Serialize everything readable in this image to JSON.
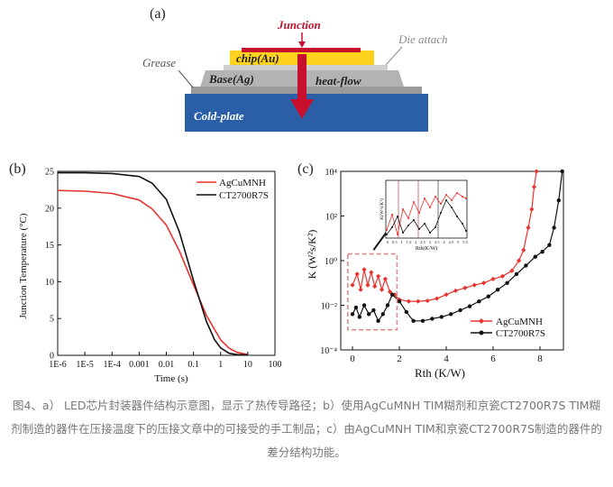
{
  "diagram": {
    "label": "(a)",
    "junction": "Junction",
    "die_attach": "Die attach",
    "grease": "Grease",
    "chip": "chip(Au)",
    "base": "Base(Ag)",
    "heat_flow": "heat-flow",
    "cold_plate": "Cold-plate",
    "colors": {
      "chip": "#ffd21e",
      "layers": "#b3b3b3",
      "cold_plate": "#2a5fa8",
      "junction": "#c8102e"
    }
  },
  "chart_data": [
    {
      "panel": "(b)",
      "type": "line",
      "xscale": "log",
      "xlabel": "Time (s)",
      "ylabel": "Junction Temperature (°C)",
      "xlim": [
        1e-06,
        100
      ],
      "ylim": [
        0,
        25
      ],
      "xticks": [
        "1E-6",
        "1E-5",
        "1E-4",
        "0.001",
        "0.01",
        "0.1",
        "1",
        "10",
        "100"
      ],
      "yticks": [
        "0",
        "5",
        "10",
        "15",
        "20",
        "25"
      ],
      "legend_position": "top-right",
      "series": [
        {
          "name": "AgCuMNH",
          "color": "#e8322e",
          "x": [
            1e-06,
            1e-05,
            0.0001,
            0.001,
            0.003,
            0.01,
            0.03,
            0.1,
            0.3,
            1,
            2,
            4,
            10
          ],
          "y": [
            22.4,
            22.3,
            22.0,
            21.1,
            19.9,
            17.7,
            14.2,
            9.6,
            5.4,
            2.1,
            1.0,
            0.4,
            0.1
          ]
        },
        {
          "name": "CT2700R7S",
          "color": "#111111",
          "x": [
            1e-06,
            1e-05,
            0.0001,
            0.001,
            0.003,
            0.01,
            0.03,
            0.1,
            0.3,
            0.6,
            1,
            2,
            4,
            10
          ],
          "y": [
            24.8,
            24.8,
            24.7,
            24.3,
            23.4,
            21.2,
            16.8,
            10.2,
            4.6,
            2.1,
            1.0,
            0.3,
            0.1,
            0.05
          ]
        }
      ]
    },
    {
      "panel": "(c)",
      "type": "line",
      "yscale": "log",
      "xlabel": "Rth (K/W)",
      "ylabel": "K (W²s/K²)",
      "xlim": [
        -0.5,
        9
      ],
      "ylim": [
        0.0001,
        10000
      ],
      "xticks": [
        "0",
        "2",
        "4",
        "6",
        "8"
      ],
      "yticks": [
        "10⁻⁴",
        "10⁻²",
        "10⁰",
        "10²",
        "10⁴"
      ],
      "legend_position": "bottom-right",
      "series": [
        {
          "name": "AgCuMNH",
          "color": "#e8322e",
          "marker": "diamond",
          "x": [
            0,
            0.2,
            0.35,
            0.5,
            0.65,
            0.8,
            0.95,
            1.1,
            1.25,
            1.4,
            1.6,
            1.8,
            2.0,
            2.4,
            2.8,
            3.2,
            3.6,
            4.0,
            4.4,
            4.8,
            5.2,
            5.6,
            6.0,
            6.4,
            6.8,
            7.1,
            7.3,
            7.5,
            7.65,
            7.75,
            7.85
          ],
          "y": [
            0.08,
            0.25,
            0.05,
            0.4,
            0.08,
            0.3,
            0.07,
            0.2,
            0.05,
            0.15,
            0.04,
            0.03,
            0.018,
            0.015,
            0.015,
            0.016,
            0.02,
            0.03,
            0.045,
            0.06,
            0.08,
            0.1,
            0.15,
            0.2,
            0.35,
            1.0,
            3.0,
            30,
            200,
            2000,
            10000
          ]
        },
        {
          "name": "CT2700R7S",
          "color": "#111111",
          "marker": "circle",
          "x": [
            0,
            0.15,
            0.3,
            0.5,
            0.7,
            0.9,
            1.1,
            1.3,
            1.5,
            1.7,
            2.0,
            2.3,
            2.6,
            3.0,
            3.4,
            3.8,
            4.2,
            4.6,
            5.0,
            5.4,
            5.8,
            6.2,
            6.6,
            7.0,
            7.4,
            7.8,
            8.1,
            8.4,
            8.6,
            8.8,
            8.95
          ],
          "y": [
            0.004,
            0.008,
            0.003,
            0.01,
            0.004,
            0.006,
            0.002,
            0.004,
            0.01,
            0.03,
            0.015,
            0.005,
            0.002,
            0.002,
            0.0025,
            0.003,
            0.004,
            0.006,
            0.009,
            0.015,
            0.025,
            0.05,
            0.1,
            0.25,
            0.6,
            1.5,
            2.5,
            5,
            30,
            500,
            10000
          ]
        }
      ]
    }
  ],
  "inset": {
    "ylabel": "K(W²s/K²)",
    "xlabel": "Rth(K/W)",
    "xticks": [
      "0",
      "0.5",
      "1",
      "1.5",
      "2",
      "2.5",
      "3",
      "3.5",
      "4",
      "4.5",
      "5",
      "5.5"
    ]
  },
  "caption": "图4、a） LED芯片封装器件结构示意图，显示了热传导路径；b）使用AgCuMNH TIM糊剂和京瓷CT2700R7S TIM糊剂制造的器件在压接温度下的压接文章中的可接受的手工制品；c）由AgCuMNH TIM和京瓷CT2700R7S制造的器件的差分结构功能。"
}
